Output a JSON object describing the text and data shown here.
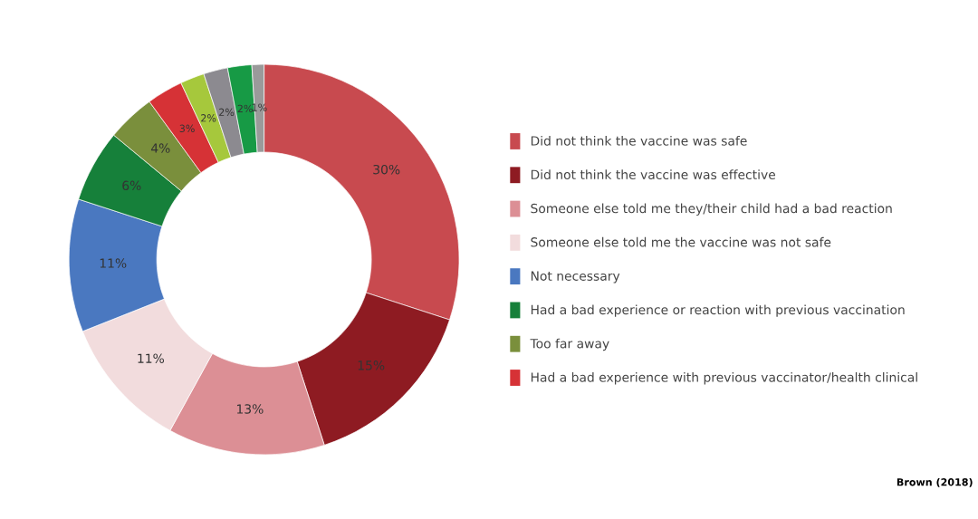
{
  "chart_data": {
    "type": "donut",
    "categories": [
      "Did not think the vaccine was safe",
      "Did not think the vaccine was effective",
      "Someone else told me they/their child had a bad reaction",
      "Someone else told me the vaccine was not safe",
      "Not necessary",
      "Had a bad experience or reaction with previous vaccination",
      "Too far away",
      "Had a bad experience with previous vaccinator/health clinical",
      null,
      null,
      null,
      null
    ],
    "values": [
      30,
      15,
      13,
      11,
      11,
      6,
      4,
      3,
      2,
      2,
      2,
      1
    ],
    "value_labels": [
      "30%",
      "15%",
      "13%",
      "11%",
      "11%",
      "6%",
      "4%",
      "3%",
      "2%",
      "2%",
      "2%",
      "1%"
    ],
    "colors": [
      "#c84a4f",
      "#8e1b22",
      "#dc8f95",
      "#f2dcdd",
      "#4a78c0",
      "#16803a",
      "#7a8f3c",
      "#d63236",
      "#a6c83c",
      "#8c8a90",
      "#179a45",
      "#9a9a9a"
    ],
    "legend": "right",
    "annotations": [
      "Brown (2018)"
    ]
  }
}
